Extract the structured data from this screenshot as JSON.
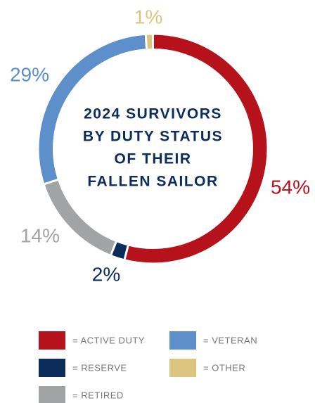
{
  "chart_data": {
    "type": "pie",
    "title": [
      "2024 SURVIVORS",
      "BY DUTY STATUS",
      "OF THEIR",
      "FALLEN SAILOR"
    ],
    "categories": [
      "= ACTIVE DUTY",
      "= RESERVE",
      "= RETIRED",
      "= VETERAN",
      "= OTHER"
    ],
    "values": [
      54,
      2,
      14,
      29,
      1
    ],
    "value_labels": [
      "54%",
      "2%",
      "14%",
      "29%",
      "1%"
    ],
    "colors": [
      "#b5121b",
      "#0c2d5c",
      "#a2a3a5",
      "#5d8fca",
      "#dcc57e"
    ]
  }
}
